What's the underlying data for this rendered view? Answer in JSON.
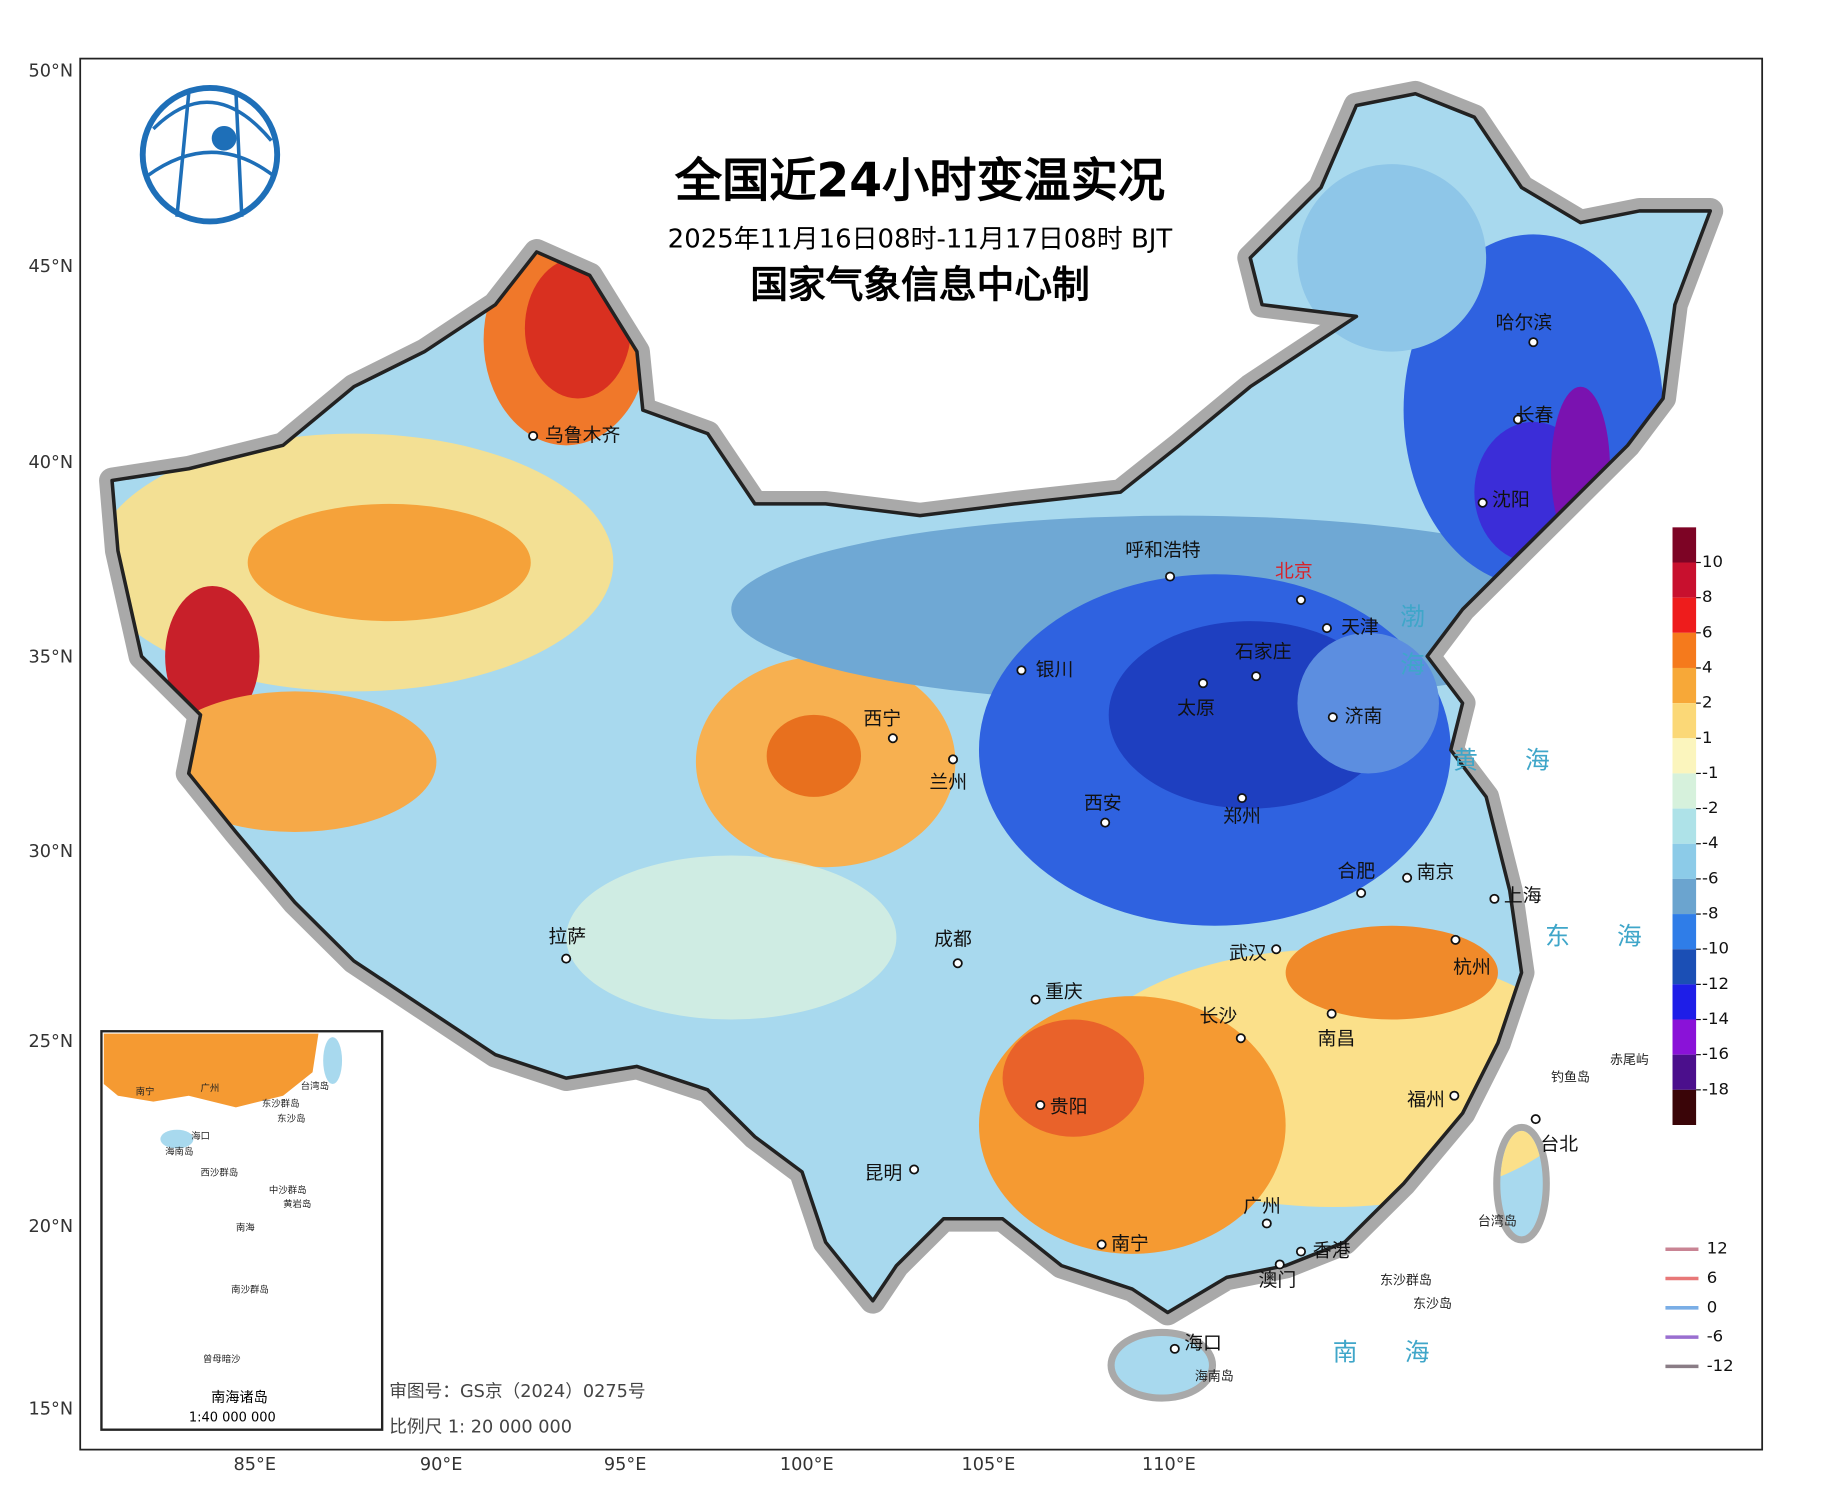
{
  "title": "全国近24小时变温实况",
  "subtitle": "2025年11月16日08时-11月17日08时 BJT",
  "producer": "国家气象信息中心制",
  "lat_ticks": [
    "50°N",
    "45°N",
    "40°N",
    "35°N",
    "30°N",
    "25°N",
    "20°N",
    "15°N"
  ],
  "lon_ticks": [
    "85°E",
    "90°E",
    "95°E",
    "100°E",
    "105°E",
    "110°E"
  ],
  "cities": [
    "乌鲁木齐",
    "拉萨",
    "西宁",
    "兰州",
    "银川",
    "呼和浩特",
    "北京",
    "天津",
    "石家庄",
    "太原",
    "济南",
    "西安",
    "郑州",
    "成都",
    "重庆",
    "武汉",
    "合肥",
    "南京",
    "上海",
    "杭州",
    "南昌",
    "长沙",
    "贵阳",
    "昆明",
    "南宁",
    "广州",
    "香港",
    "澳门",
    "海口",
    "福州",
    "台北",
    "哈尔滨",
    "长春",
    "沈阳"
  ],
  "seas": [
    "渤海",
    "黄海",
    "东海",
    "南海"
  ],
  "islands": [
    "钓鱼岛",
    "赤尾屿",
    "台湾岛",
    "东沙群岛",
    "东沙岛",
    "海南岛"
  ],
  "color_legend": {
    "labels": [
      "10",
      "8",
      "6",
      "4",
      "2",
      "1",
      "-1",
      "-2",
      "-4",
      "-6",
      "-8",
      "-10",
      "-12",
      "-14",
      "-16",
      "-18"
    ],
    "colors": [
      "#7d0425",
      "#c8102e",
      "#ee1c1c",
      "#f57a1c",
      "#f7a838",
      "#fbd877",
      "#fbf5bd",
      "#d6f1dc",
      "#aee2e8",
      "#8ccbe8",
      "#6ba4cf",
      "#2f7de8",
      "#1b4fb5",
      "#1e1ee8",
      "#8a12d8",
      "#4b0f8c",
      "#3a0508"
    ]
  },
  "contour_legend": [
    {
      "label": "12",
      "color": "#c98494"
    },
    {
      "label": "6",
      "color": "#e87878"
    },
    {
      "label": "0",
      "color": "#7aaee6"
    },
    {
      "label": "-6",
      "color": "#9a6fd0"
    },
    {
      "label": "-12",
      "color": "#8a7d86"
    }
  ],
  "inset": {
    "title": "南海诸岛",
    "scale": "1:40 000 000",
    "labels": [
      "南宁",
      "广州",
      "台湾岛",
      "东沙群岛",
      "东沙岛",
      "海口",
      "海南岛",
      "西沙群岛",
      "中沙群岛",
      "黄岩岛",
      "南海",
      "南沙群岛",
      "曾母暗沙"
    ]
  },
  "review_number": "审图号：GS京（2024）0275号",
  "scale": "比例尺 1: 20 000 000"
}
